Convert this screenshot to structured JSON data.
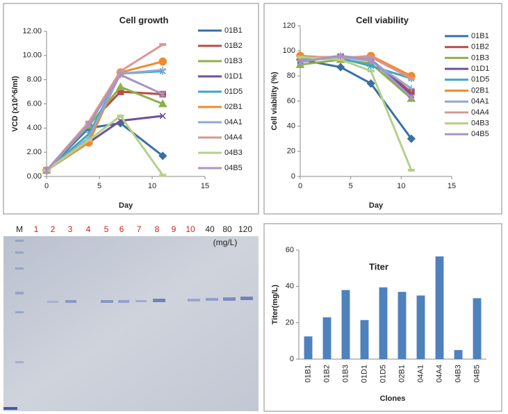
{
  "chart_data": [
    {
      "type": "line",
      "title": "Cell growth",
      "xlabel": "Day",
      "ylabel": "VCD (x10^6/ml)",
      "x": [
        0,
        4,
        7,
        11
      ],
      "xlim": [
        0,
        15
      ],
      "xticks": [
        0,
        5,
        10,
        15
      ],
      "ylim": [
        0,
        12
      ],
      "yticks": [
        {
          "value": 0,
          "label": "0.00"
        },
        {
          "value": 2,
          "label": "2.00"
        },
        {
          "value": 4,
          "label": "4.00"
        },
        {
          "value": 6,
          "label": "6.00"
        },
        {
          "value": 8,
          "label": "8.00"
        },
        {
          "value": 10,
          "label": "10.00"
        },
        {
          "value": 12,
          "label": "12.00"
        }
      ],
      "series": [
        {
          "name": "01B1",
          "color": "#3a6ea5",
          "marker": "diamond",
          "values": [
            0.5,
            4.0,
            4.4,
            1.7
          ]
        },
        {
          "name": "01B2",
          "color": "#b94a48",
          "marker": "square",
          "values": [
            0.5,
            4.3,
            7.0,
            6.8
          ]
        },
        {
          "name": "01B3",
          "color": "#8cb04b",
          "marker": "triangle",
          "values": [
            0.5,
            4.2,
            7.4,
            6.0
          ]
        },
        {
          "name": "01D1",
          "color": "#6f4f9a",
          "marker": "x",
          "values": [
            0.5,
            2.8,
            4.6,
            5.0
          ]
        },
        {
          "name": "01D5",
          "color": "#3fa6c0",
          "marker": "star",
          "values": [
            0.5,
            3.5,
            8.5,
            8.7
          ]
        },
        {
          "name": "02B1",
          "color": "#f08a2b",
          "marker": "circle",
          "values": [
            0.5,
            2.8,
            8.6,
            9.5
          ]
        },
        {
          "name": "04A1",
          "color": "#8fa8d4",
          "marker": "plus",
          "values": [
            0.5,
            3.2,
            8.5,
            8.8
          ]
        },
        {
          "name": "04A4",
          "color": "#d99694",
          "marker": "dash",
          "values": [
            0.5,
            4.5,
            8.7,
            10.9
          ]
        },
        {
          "name": "04B3",
          "color": "#b4d08a",
          "marker": "dash",
          "values": [
            0.5,
            3.0,
            5.0,
            0.1
          ]
        },
        {
          "name": "04B5",
          "color": "#a894c6",
          "marker": "star",
          "values": [
            0.5,
            4.3,
            8.4,
            6.8
          ]
        }
      ]
    },
    {
      "type": "line",
      "title": "Cell viability",
      "xlabel": "Day",
      "ylabel": "Cell viability (%)",
      "x": [
        0,
        4,
        7,
        11
      ],
      "xlim": [
        0,
        15
      ],
      "xticks": [
        0,
        5,
        10,
        15
      ],
      "ylim": [
        0,
        120
      ],
      "yticks": [
        0,
        20,
        40,
        60,
        80,
        100,
        120
      ],
      "series": [
        {
          "name": "01B1",
          "color": "#3a6ea5",
          "marker": "diamond",
          "values": [
            93,
            87,
            74,
            30
          ]
        },
        {
          "name": "01B2",
          "color": "#b94a48",
          "marker": "square",
          "values": [
            95,
            95,
            93,
            67
          ]
        },
        {
          "name": "01B3",
          "color": "#8cb04b",
          "marker": "triangle",
          "values": [
            89,
            93,
            90,
            62
          ]
        },
        {
          "name": "01D1",
          "color": "#6f4f9a",
          "marker": "x",
          "values": [
            92,
            96,
            93,
            65
          ]
        },
        {
          "name": "01D5",
          "color": "#3fa6c0",
          "marker": "star",
          "values": [
            93,
            94,
            88,
            78
          ]
        },
        {
          "name": "02B1",
          "color": "#f08a2b",
          "marker": "circle",
          "values": [
            96,
            94,
            96,
            80
          ]
        },
        {
          "name": "04A1",
          "color": "#8fa8d4",
          "marker": "plus",
          "values": [
            92,
            95,
            92,
            70
          ]
        },
        {
          "name": "04A4",
          "color": "#d99694",
          "marker": "dash",
          "values": [
            95,
            95,
            95,
            78
          ]
        },
        {
          "name": "04B3",
          "color": "#b4d08a",
          "marker": "dash",
          "values": [
            95,
            93,
            84,
            5
          ]
        },
        {
          "name": "04B5",
          "color": "#a894c6",
          "marker": "star",
          "values": [
            91,
            96,
            93,
            63
          ]
        }
      ]
    },
    {
      "type": "bar",
      "title": "Titer",
      "xlabel": "Clones",
      "ylabel": "Titer(mg/L)",
      "categories": [
        "01B1",
        "01B2",
        "01B3",
        "01D1",
        "01D5",
        "02B1",
        "04A1",
        "04A4",
        "04B3",
        "04B5"
      ],
      "values": [
        12.5,
        23,
        38,
        21.5,
        39.5,
        37,
        35,
        56.5,
        5,
        33.5
      ],
      "color": "#4f81bd",
      "ylim": [
        0,
        60
      ],
      "yticks": [
        0,
        20,
        40,
        60
      ]
    }
  ],
  "gel": {
    "lane_labels": [
      "M",
      "1",
      "2",
      "3",
      "4",
      "5",
      "6",
      "7",
      "8",
      "9",
      "10",
      "40",
      "80",
      "120"
    ],
    "unit": "(mg/L)"
  }
}
